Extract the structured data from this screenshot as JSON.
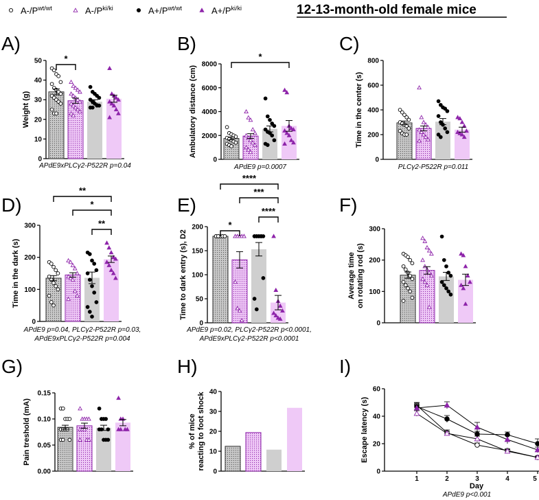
{
  "title": "12-13-month-old female mice",
  "legend": [
    {
      "base": "A-/P",
      "sup": "wt/wt",
      "marker": "open-circle"
    },
    {
      "base": "A-/P",
      "sup": "ki/ki",
      "marker": "open-triangle"
    },
    {
      "base": "A+/P",
      "sup": "wt/wt",
      "marker": "filled-circle"
    },
    {
      "base": "A+/P",
      "sup": "ki/ki",
      "marker": "filled-triangle"
    }
  ],
  "colors": {
    "black": "#000000",
    "purple": "#8e24aa",
    "bar_gray": "#cfcfcf",
    "bar_pink": "#efc9f7",
    "dot_gray": "#bdbdbd"
  },
  "chart_data": [
    {
      "id": "A",
      "type": "bar",
      "letter": "A)",
      "ylabel": "Weight (g)",
      "yticks": [
        "0",
        "10",
        "20",
        "30",
        "40",
        "50"
      ],
      "ylim": [
        0,
        50
      ],
      "means": [
        34,
        29.5,
        29,
        30.5
      ],
      "sem": [
        1.5,
        1.3,
        1,
        1.8
      ],
      "points": [
        [
          46,
          45,
          43,
          42,
          39,
          38,
          36,
          35,
          34,
          33,
          32,
          31,
          30,
          29,
          28,
          25,
          23,
          23
        ],
        [
          39,
          37,
          36,
          35,
          34,
          33,
          32,
          31,
          30,
          29,
          28,
          27,
          26,
          25,
          24,
          23,
          22
        ],
        [
          36.5,
          34,
          33,
          32,
          31,
          30,
          29,
          28,
          27,
          27,
          26,
          26
        ],
        [
          46,
          33,
          32,
          31,
          30,
          29,
          28,
          27,
          25,
          23,
          21
        ]
      ],
      "sig": [
        {
          "from": 0,
          "to": 1,
          "label": "*"
        }
      ],
      "footer": [
        "APdE9xPLCγ2-P522R p=0.04"
      ]
    },
    {
      "id": "B",
      "type": "bar",
      "letter": "B)",
      "ylabel": "Ambulatory distance (cm)",
      "yticks": [
        "0",
        "2000",
        "4000",
        "6000",
        "8000"
      ],
      "ylim": [
        0,
        8000
      ],
      "means": [
        1750,
        1950,
        2550,
        2800
      ],
      "sem": [
        120,
        200,
        250,
        450
      ],
      "points": [
        [
          2700,
          2200,
          2100,
          2000,
          1900,
          1800,
          1700,
          1600,
          1500,
          1400,
          1300,
          1200,
          1100
        ],
        [
          4000,
          3500,
          3300,
          2500,
          2200,
          2000,
          1800,
          1600,
          1400,
          1200,
          1000,
          800,
          600
        ],
        [
          5100,
          3600,
          3300,
          3000,
          2800,
          2500,
          2300,
          2200,
          2000,
          1600,
          1300,
          1200
        ],
        [
          5800,
          5600,
          2800,
          2600,
          2500,
          2400,
          2200,
          2000,
          1600,
          1400,
          1300
        ]
      ],
      "sig": [
        {
          "from": 0,
          "to": 3,
          "label": "*"
        }
      ],
      "footer": [
        "APdE9 p=0.0007"
      ]
    },
    {
      "id": "C",
      "type": "bar",
      "letter": "C)",
      "ylabel": "Time in the center (s)",
      "yticks": [
        "0",
        "200",
        "400",
        "600",
        "800"
      ],
      "ylim": [
        0,
        800
      ],
      "means": [
        295,
        250,
        305,
        240
      ],
      "sem": [
        15,
        20,
        25,
        20
      ],
      "points": [
        [
          400,
          380,
          360,
          340,
          320,
          300,
          290,
          280,
          270,
          250,
          230,
          210,
          200,
          200
        ],
        [
          580,
          340,
          300,
          280,
          260,
          240,
          220,
          200,
          180,
          160,
          150
        ],
        [
          470,
          440,
          420,
          410,
          390,
          350,
          300,
          280,
          250,
          220,
          200,
          180
        ],
        [
          340,
          330,
          300,
          270,
          230,
          220,
          210,
          200,
          180
        ]
      ],
      "sig": [],
      "footer": [
        "PLCγ2-P522R p=0.011"
      ]
    },
    {
      "id": "D",
      "type": "bar",
      "letter": "D)",
      "ylabel": "Time in the dark (s)",
      "yticks": [
        "0",
        "100",
        "200",
        "300"
      ],
      "ylim": [
        0,
        300
      ],
      "means": [
        135,
        145,
        136,
        194
      ],
      "sem": [
        8,
        7,
        18,
        10
      ],
      "points": [
        [
          185,
          180,
          170,
          160,
          150,
          140,
          130,
          120,
          110,
          100,
          80,
          60,
          50
        ],
        [
          190,
          185,
          175,
          165,
          150,
          140,
          135,
          130,
          95,
          80,
          70
        ],
        [
          215,
          210,
          190,
          180,
          160,
          150,
          130,
          110,
          90,
          60,
          45,
          30,
          15
        ],
        [
          245,
          230,
          215,
          200,
          195,
          185,
          175,
          160,
          150,
          135
        ]
      ],
      "sig": [
        {
          "from": 2,
          "to": 3,
          "label": "**"
        },
        {
          "from": 1,
          "to": 3,
          "label": "*"
        },
        {
          "from": 0,
          "to": 3,
          "label": "**"
        }
      ],
      "footer": [
        "APdE9 p=0.04,  PLCγ2-P522R p=0.03,",
        "APdE9xPLCγ2-P522R p=0.004"
      ]
    },
    {
      "id": "E",
      "type": "bar",
      "letter": "E)",
      "ylabel": "Time to dark entry (s),  D2",
      "yticks": [
        "0",
        "50",
        "100",
        "150",
        "200"
      ],
      "ylim": [
        0,
        200
      ],
      "means": [
        180,
        131,
        153,
        42
      ],
      "sem": [
        0,
        17,
        14,
        15
      ],
      "points": [
        [
          180,
          180,
          180,
          180,
          180,
          180,
          180,
          180,
          180,
          180,
          180,
          180
        ],
        [
          180,
          180,
          180,
          180,
          180,
          180,
          180,
          180,
          180,
          180,
          85,
          30,
          25,
          5
        ],
        [
          180,
          180,
          180,
          180,
          180,
          180,
          180,
          180,
          180,
          93,
          50,
          28
        ],
        [
          180,
          68,
          45,
          35,
          25,
          20,
          15,
          10,
          8
        ]
      ],
      "sig": [
        {
          "from": 0,
          "to": 1,
          "label": "*"
        },
        {
          "from": 2,
          "to": 3,
          "label": "****"
        },
        {
          "from": 1,
          "to": 3,
          "label": "***"
        },
        {
          "from": 0,
          "to": 3,
          "label": "****"
        }
      ],
      "footer": [
        "APdE9 p=0.02,  PLCγ2-P522R p<0.0001,",
        "APdE9xPLCγ2-P522R p<0.0001"
      ]
    },
    {
      "id": "F",
      "type": "bar",
      "letter": "F)",
      "ylabel": [
        "Average time",
        "on rotating rod (s)"
      ],
      "yticks": [
        "0",
        "100",
        "200",
        "300"
      ],
      "ylim": [
        0,
        300
      ],
      "means": [
        152,
        167,
        148,
        137
      ],
      "sem": [
        10,
        12,
        13,
        18
      ],
      "points": [
        [
          220,
          215,
          210,
          200,
          190,
          180,
          170,
          160,
          150,
          140,
          130,
          120,
          110,
          100,
          80,
          70
        ],
        [
          270,
          260,
          240,
          230,
          220,
          200,
          180,
          170,
          160,
          150,
          140,
          130,
          120,
          50
        ],
        [
          275,
          200,
          180,
          160,
          150,
          130,
          120,
          110,
          100,
          90
        ],
        [
          220,
          215,
          180,
          150,
          130,
          120,
          110,
          60
        ]
      ],
      "sig": [],
      "footer": []
    },
    {
      "id": "G",
      "type": "bar",
      "letter": "G)",
      "ylabel": "Pain treshold (mA)",
      "yticks": [
        "0.00",
        "0.05",
        "0.10",
        "0.15"
      ],
      "ylim": [
        0,
        0.15
      ],
      "means": [
        0.084,
        0.087,
        0.083,
        0.093
      ],
      "sem": [
        0.004,
        0.005,
        0.005,
        0.006
      ],
      "points": [
        [
          0.12,
          0.12,
          0.1,
          0.1,
          0.1,
          0.08,
          0.08,
          0.08,
          0.08,
          0.06,
          0.06,
          0.06
        ],
        [
          0.12,
          0.1,
          0.1,
          0.1,
          0.1,
          0.08,
          0.08,
          0.08,
          0.06,
          0.06,
          0.06
        ],
        [
          0.12,
          0.1,
          0.1,
          0.1,
          0.08,
          0.08,
          0.08,
          0.06,
          0.06,
          0.06
        ],
        [
          0.14,
          0.1,
          0.1,
          0.08,
          0.08,
          0.08,
          0.08
        ]
      ],
      "sig": [],
      "footer": []
    },
    {
      "id": "H",
      "type": "bar",
      "letter": "H)",
      "ylabel": [
        "% of mice",
        "reacting to foot shock"
      ],
      "yticks": [
        "0",
        "10",
        "20",
        "30",
        "40"
      ],
      "ylim": [
        0,
        40
      ],
      "means": [
        12.5,
        19.4,
        10.8,
        31.8
      ],
      "sem": null,
      "points": null,
      "sig": [],
      "footer": []
    },
    {
      "id": "I",
      "type": "line",
      "letter": "I)",
      "ylabel": "Escape latency (s)",
      "xlabel": "Day",
      "xticks": [
        "1",
        "2",
        "3",
        "4",
        "5"
      ],
      "yticks": [
        "0",
        "20",
        "40",
        "60"
      ],
      "ylim": [
        0,
        60
      ],
      "series": [
        {
          "name": "A-/Pwt/wt",
          "marker": "open-circle",
          "values": [
            48,
            28,
            19,
            15,
            10
          ],
          "sem": [
            2,
            2,
            1.5,
            1.2,
            1
          ]
        },
        {
          "name": "A-/Pki/ki",
          "marker": "open-triangle",
          "values": [
            42,
            27.5,
            23.5,
            14.5,
            10
          ],
          "sem": [
            2,
            1.5,
            2,
            1.2,
            1
          ]
        },
        {
          "name": "A+/Pwt/wt",
          "marker": "filled-circle",
          "values": [
            47,
            38,
            27,
            26.5,
            20
          ],
          "sem": [
            2.5,
            2.5,
            2,
            2,
            3.5
          ]
        },
        {
          "name": "A+/Pki/ki",
          "marker": "filled-triangle",
          "values": [
            46,
            48,
            32,
            23,
            15.5
          ],
          "sem": [
            2.5,
            2.5,
            3.5,
            3,
            2
          ]
        }
      ],
      "footer": [
        "APdE9 p<0.001"
      ]
    }
  ]
}
